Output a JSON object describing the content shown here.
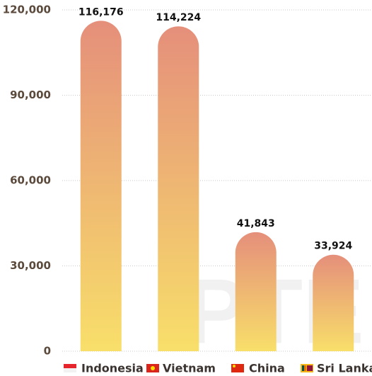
{
  "chart_data": {
    "type": "bar",
    "categories": [
      "Indonesia",
      "Vietnam",
      "China",
      "Sri Lanka"
    ],
    "values": [
      116176,
      114224,
      41843,
      33924
    ],
    "value_labels": [
      "116,176",
      "114,224",
      "41,843",
      "33,924"
    ],
    "ylim": [
      0,
      120000
    ],
    "yticks": [
      0,
      {
        "value": 30000,
        "label": "30,000"
      },
      {
        "value": 60000,
        "label": "60,000"
      },
      {
        "value": 90000,
        "label": "90,000"
      },
      {
        "value": 120000,
        "label": "120,000"
      }
    ],
    "grid": true,
    "watermark": "PTE"
  }
}
